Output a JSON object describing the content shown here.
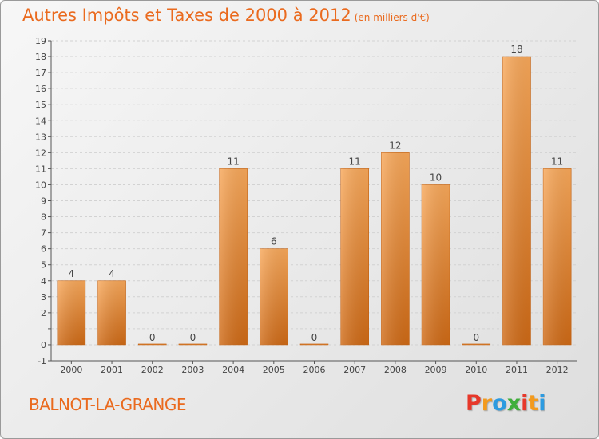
{
  "header": {
    "title": "Autres Impôts et Taxes de 2000 à 2012",
    "unit": "(en milliers d'€)"
  },
  "footer": {
    "commune": "BALNOT-LA-GRANGE",
    "logo_text": "Proxiti",
    "logo_colors": [
      "#e7382a",
      "#f39a1d",
      "#2d9be0",
      "#3fae3b",
      "#e7382a",
      "#f39a1d",
      "#2d9be0"
    ]
  },
  "colors": {
    "bar_top": "#f8a85a",
    "bar_bottom": "#cf6a16",
    "title": "#ea6a1e",
    "gridline": "#d2d2d2"
  },
  "chart_data": {
    "type": "bar",
    "title": "Autres Impôts et Taxes de 2000 à 2012",
    "subtitle": "(en milliers d'€)",
    "xlabel": "",
    "ylabel": "",
    "categories": [
      "2000",
      "2001",
      "2002",
      "2003",
      "2004",
      "2005",
      "2006",
      "2007",
      "2008",
      "2009",
      "2010",
      "2011",
      "2012"
    ],
    "values": [
      4,
      4,
      0,
      0,
      11,
      6,
      0,
      11,
      12,
      10,
      0,
      18,
      11
    ],
    "data_labels": [
      "4",
      "4",
      "0",
      "0",
      "11",
      "6",
      "0",
      "11",
      "12",
      "10",
      "0",
      "18",
      "11"
    ],
    "ylim": [
      -1,
      19
    ],
    "yticks": [
      -1,
      0,
      1,
      2,
      3,
      4,
      5,
      6,
      7,
      8,
      9,
      10,
      11,
      12,
      13,
      14,
      15,
      16,
      17,
      18,
      19
    ],
    "ytick_labels": [
      "-1",
      "0",
      "",
      "2",
      "3",
      "4",
      "5",
      "6",
      "7",
      "8",
      "9",
      "10",
      "11",
      "12",
      "13",
      "14",
      "15",
      "16",
      "17",
      "18",
      "19"
    ],
    "grid": true,
    "legend": "none"
  }
}
